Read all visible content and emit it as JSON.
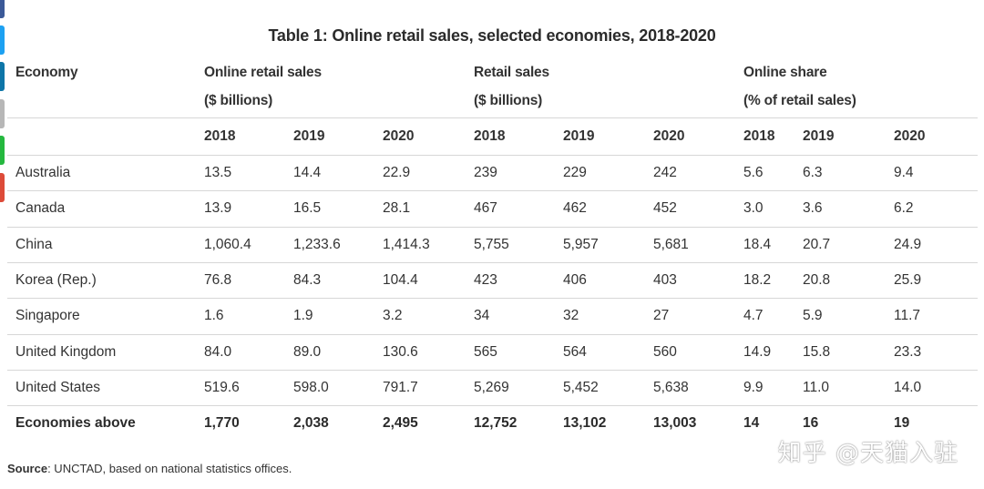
{
  "colors": {
    "tabs": [
      "#3b5998",
      "#1da1f2",
      "#0e76a8",
      "#b7b7b7",
      "#25b83f",
      "#dd4b39"
    ],
    "line": "#d7d7d7"
  },
  "title": "Table 1: Online retail sales, selected economies, 2018-2020",
  "headers": {
    "economy": "Economy",
    "online": "Online retail sales",
    "online_unit": "($ billions)",
    "retail": "Retail sales",
    "retail_unit": "($ billions)",
    "share": "Online share",
    "share_unit": "(% of retail sales)"
  },
  "years": [
    "2018",
    "2019",
    "2020",
    "2018",
    "2019",
    "2020",
    "2018",
    "2019",
    "2020"
  ],
  "rows": [
    {
      "economy": "Australia",
      "values": [
        "13.5",
        "14.4",
        "22.9",
        "239",
        "229",
        "242",
        "5.6",
        "6.3",
        "9.4"
      ]
    },
    {
      "economy": "Canada",
      "values": [
        "13.9",
        "16.5",
        "28.1",
        "467",
        "462",
        "452",
        "3.0",
        "3.6",
        "6.2"
      ]
    },
    {
      "economy": "China",
      "values": [
        "1,060.4",
        "1,233.6",
        "1,414.3",
        "5,755",
        "5,957",
        "5,681",
        "18.4",
        "20.7",
        "24.9"
      ]
    },
    {
      "economy": "Korea (Rep.)",
      "values": [
        "76.8",
        "84.3",
        "104.4",
        "423",
        "406",
        "403",
        "18.2",
        "20.8",
        "25.9"
      ]
    },
    {
      "economy": "Singapore",
      "values": [
        "1.6",
        "1.9",
        "3.2",
        "34",
        "32",
        "27",
        "4.7",
        "5.9",
        "11.7"
      ]
    },
    {
      "economy": "United Kingdom",
      "values": [
        "84.0",
        "89.0",
        "130.6",
        "565",
        "564",
        "560",
        "14.9",
        "15.8",
        "23.3"
      ]
    },
    {
      "economy": "United States",
      "values": [
        "519.6",
        "598.0",
        "791.7",
        "5,269",
        "5,452",
        "5,638",
        "9.9",
        "11.0",
        "14.0"
      ]
    }
  ],
  "total": {
    "economy": "Economies above",
    "values": [
      "1,770",
      "2,038",
      "2,495",
      "12,752",
      "13,102",
      "13,003",
      "14",
      "16",
      "19"
    ]
  },
  "source": {
    "label": "Source",
    "text": ": UNCTAD, based on national statistics offices."
  },
  "watermark": "知乎 @天猫入驻"
}
